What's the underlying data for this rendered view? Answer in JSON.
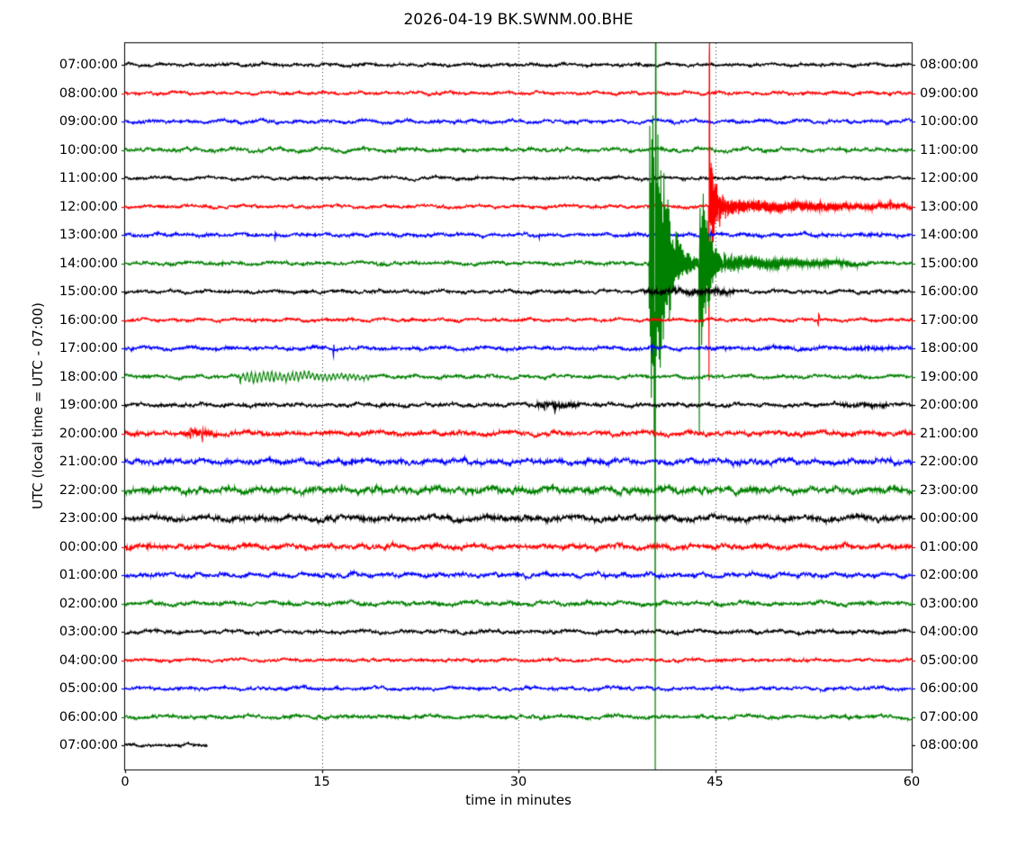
{
  "title": "2026-04-19 BK.SWNM.00.BHE",
  "chart_data": {
    "type": "line",
    "subtype": "helicorder-dayplot-seismogram",
    "station_id": "BK.SWNM.00.BHE",
    "date": "2026-04-19",
    "xlabel": "time in minutes",
    "ylabel": "UTC (local time = UTC - 07:00)",
    "xlim": [
      0,
      60
    ],
    "minutes_per_row": 60,
    "x_ticks": [
      "0",
      "15",
      "30",
      "45",
      "60"
    ],
    "x_tick_values": [
      0,
      15,
      30,
      45,
      60
    ],
    "grid_minutes": [
      15,
      30,
      45
    ],
    "grid_style": "dotted",
    "legend": "none",
    "color_cycle": [
      "#000000",
      "#ff0000",
      "#0000ff",
      "#008000"
    ],
    "rows": [
      {
        "left_label": "07:00:00",
        "right_label": "08:00:00",
        "color": "#000000",
        "wander": 1.4,
        "jitter": 1.1
      },
      {
        "left_label": "08:00:00",
        "right_label": "09:00:00",
        "color": "#ff0000",
        "wander": 1.4,
        "jitter": 1.1
      },
      {
        "left_label": "09:00:00",
        "right_label": "10:00:00",
        "color": "#0000ff",
        "wander": 1.8,
        "jitter": 1.2
      },
      {
        "left_label": "10:00:00",
        "right_label": "11:00:00",
        "color": "#008000",
        "wander": 1.9,
        "jitter": 1.3
      },
      {
        "left_label": "11:00:00",
        "right_label": "12:00:00",
        "color": "#000000",
        "wander": 1.5,
        "jitter": 1.1
      },
      {
        "left_label": "12:00:00",
        "right_label": "13:00:00",
        "color": "#ff0000",
        "wander": 1.5,
        "jitter": 1.1
      },
      {
        "left_label": "13:00:00",
        "right_label": "14:00:00",
        "color": "#0000ff",
        "wander": 1.5,
        "jitter": 1.2
      },
      {
        "left_label": "14:00:00",
        "right_label": "15:00:00",
        "color": "#008000",
        "wander": 1.6,
        "jitter": 1.2
      },
      {
        "left_label": "15:00:00",
        "right_label": "16:00:00",
        "color": "#000000",
        "wander": 1.5,
        "jitter": 1.2
      },
      {
        "left_label": "16:00:00",
        "right_label": "17:00:00",
        "color": "#ff0000",
        "wander": 1.4,
        "jitter": 1.1
      },
      {
        "left_label": "17:00:00",
        "right_label": "18:00:00",
        "color": "#0000ff",
        "wander": 1.6,
        "jitter": 1.3
      },
      {
        "left_label": "18:00:00",
        "right_label": "19:00:00",
        "color": "#008000",
        "wander": 1.6,
        "jitter": 1.2
      },
      {
        "left_label": "19:00:00",
        "right_label": "20:00:00",
        "color": "#000000",
        "wander": 1.6,
        "jitter": 1.3
      },
      {
        "left_label": "20:00:00",
        "right_label": "21:00:00",
        "color": "#ff0000",
        "wander": 1.9,
        "jitter": 1.7
      },
      {
        "left_label": "21:00:00",
        "right_label": "22:00:00",
        "color": "#0000ff",
        "wander": 2.4,
        "jitter": 1.9
      },
      {
        "left_label": "22:00:00",
        "right_label": "23:00:00",
        "color": "#008000",
        "wander": 2.6,
        "jitter": 2.3
      },
      {
        "left_label": "23:00:00",
        "right_label": "00:00:00",
        "color": "#000000",
        "wander": 2.4,
        "jitter": 2.1
      },
      {
        "left_label": "00:00:00",
        "right_label": "01:00:00",
        "color": "#ff0000",
        "wander": 2.0,
        "jitter": 1.8
      },
      {
        "left_label": "01:00:00",
        "right_label": "02:00:00",
        "color": "#0000ff",
        "wander": 1.9,
        "jitter": 1.5
      },
      {
        "left_label": "02:00:00",
        "right_label": "03:00:00",
        "color": "#008000",
        "wander": 1.9,
        "jitter": 1.4
      },
      {
        "left_label": "03:00:00",
        "right_label": "04:00:00",
        "color": "#000000",
        "wander": 1.7,
        "jitter": 1.3
      },
      {
        "left_label": "04:00:00",
        "right_label": "05:00:00",
        "color": "#ff0000",
        "wander": 1.3,
        "jitter": 1.1
      },
      {
        "left_label": "05:00:00",
        "right_label": "06:00:00",
        "color": "#0000ff",
        "wander": 1.5,
        "jitter": 1.2
      },
      {
        "left_label": "06:00:00",
        "right_label": "07:00:00",
        "color": "#008000",
        "wander": 1.7,
        "jitter": 1.3
      },
      {
        "left_label": "07:00:00",
        "right_label": "08:00:00",
        "color": "#000000",
        "wander": 1.4,
        "jitter": 1.1,
        "end_min": 6.3
      }
    ],
    "events": [
      {
        "row": 5,
        "kind": "burst",
        "t0": 44.48,
        "amp": 110,
        "rise": 0.1,
        "decay": 0.5,
        "freq": 16
      },
      {
        "row": 5,
        "kind": "spike",
        "t": 44.56,
        "amp_up": 175,
        "amp_down": 226,
        "width": 0.05
      },
      {
        "row": 5,
        "kind": "coda",
        "t0": 45.3,
        "t1": 60,
        "amp0": 9,
        "amp1": 2.2,
        "freq": 11
      },
      {
        "row": 5,
        "kind": "spike",
        "t": 53.0,
        "amp_up": 4,
        "amp_down": 5,
        "width": 0.08
      },
      {
        "row": 5,
        "kind": "spike",
        "t": 58.4,
        "amp_up": 5,
        "amp_down": 7,
        "width": 0.06
      },
      {
        "row": 6,
        "kind": "spike",
        "t": 11.45,
        "amp_up": 3,
        "amp_down": 6,
        "width": 0.06
      },
      {
        "row": 6,
        "kind": "spike",
        "t": 31.6,
        "amp_up": 2,
        "amp_down": 4,
        "width": 0.06
      },
      {
        "row": 6,
        "kind": "spike",
        "t": 40.3,
        "amp_up": 4,
        "amp_down": 7,
        "width": 0.06
      },
      {
        "row": 6,
        "kind": "spike",
        "t": 44.7,
        "amp_up": 5,
        "amp_down": 4,
        "width": 0.06
      },
      {
        "row": 6,
        "kind": "noiseband",
        "t0": 38,
        "t1": 60,
        "amp": 0.7
      },
      {
        "row": 7,
        "kind": "spike",
        "t": 7.45,
        "amp_up": 2,
        "amp_down": 4,
        "width": 0.06
      },
      {
        "row": 7,
        "kind": "burst",
        "t0": 39.95,
        "amp": 380,
        "rise": 0.12,
        "decay": 0.9,
        "freq": 13
      },
      {
        "row": 7,
        "kind": "spike",
        "t": 40.45,
        "amp_up": 330,
        "amp_down": 448,
        "width": 0.06
      },
      {
        "row": 7,
        "kind": "burst",
        "t0": 43.75,
        "amp": 180,
        "rise": 0.15,
        "decay": 0.6,
        "freq": 13
      },
      {
        "row": 7,
        "kind": "spike",
        "t": 43.82,
        "amp_up": 60,
        "amp_down": 265,
        "width": 0.05
      },
      {
        "row": 7,
        "kind": "coda",
        "t0": 45.6,
        "t1": 57,
        "amp0": 11,
        "amp1": 2.2,
        "freq": 9
      },
      {
        "row": 8,
        "kind": "noiseband",
        "t0": 39.5,
        "t1": 46.5,
        "amp": 2.6
      },
      {
        "row": 8,
        "kind": "spike",
        "t": 43.4,
        "amp_up": 5,
        "amp_down": 3,
        "width": 0.08
      },
      {
        "row": 9,
        "kind": "spike",
        "t": 52.9,
        "amp_up": 7,
        "amp_down": 7,
        "width": 0.1
      },
      {
        "row": 10,
        "kind": "spike",
        "t": 15.9,
        "amp_up": 8,
        "amp_down": 8,
        "width": 0.05
      },
      {
        "row": 10,
        "kind": "spike",
        "t": 40.2,
        "amp_up": 3,
        "amp_down": 6,
        "width": 0.06
      },
      {
        "row": 10,
        "kind": "noiseband",
        "t0": 44.5,
        "t1": 60,
        "amp": 0.9
      },
      {
        "row": 10,
        "kind": "noiseband",
        "t0": 55.5,
        "t1": 58.5,
        "amp": 1.5
      },
      {
        "row": 11,
        "kind": "spindle",
        "t0": 8.3,
        "t1": 18.8,
        "amp": 5.5,
        "freq": 3.2
      },
      {
        "row": 11,
        "kind": "spike",
        "t": 8.8,
        "amp_up": 2,
        "amp_down": 6,
        "width": 0.08
      },
      {
        "row": 12,
        "kind": "noiseband",
        "t0": 31.4,
        "t1": 34.6,
        "amp": 2.6
      },
      {
        "row": 12,
        "kind": "spike",
        "t": 32.0,
        "amp_up": 4,
        "amp_down": 6,
        "width": 0.07
      },
      {
        "row": 12,
        "kind": "spike",
        "t": 32.8,
        "amp_up": 6,
        "amp_down": 8,
        "width": 0.07
      },
      {
        "row": 12,
        "kind": "noiseband",
        "t0": 54.5,
        "t1": 58.2,
        "amp": 1.5
      },
      {
        "row": 13,
        "kind": "noiseband",
        "t0": 4.5,
        "t1": 7.0,
        "amp": 3.5
      },
      {
        "row": 13,
        "kind": "spike",
        "t": 5.0,
        "amp_up": 7,
        "amp_down": 5,
        "width": 0.07
      },
      {
        "row": 13,
        "kind": "spike",
        "t": 5.9,
        "amp_up": 4,
        "amp_down": 8,
        "width": 0.07
      },
      {
        "row": 17,
        "kind": "noiseband",
        "t0": 0,
        "t1": 3,
        "amp": 1.4
      }
    ]
  }
}
